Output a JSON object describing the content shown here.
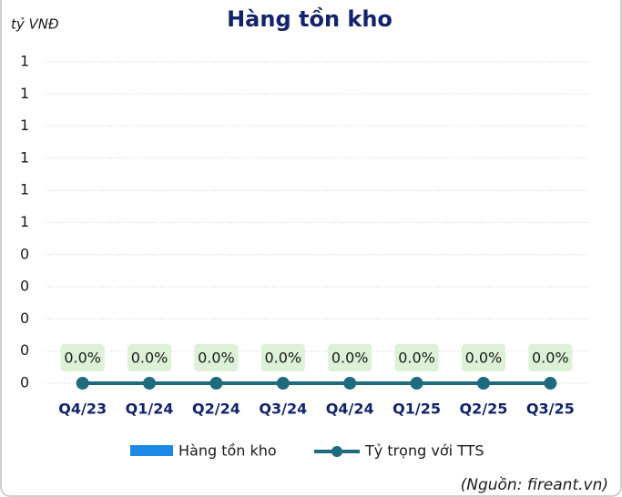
{
  "chart_data": {
    "type": "bar",
    "title": "Hàng tồn kho",
    "y_label": "tỷ VNĐ",
    "source": "(Nguồn: fireant.vn)",
    "categories": [
      "Q4/23",
      "Q1/24",
      "Q2/24",
      "Q3/24",
      "Q4/24",
      "Q1/25",
      "Q2/25",
      "Q3/25"
    ],
    "series": [
      {
        "name": "Hàng tồn kho",
        "type": "bar",
        "color": "#1e88e5",
        "values": [
          0,
          0,
          0,
          0,
          0,
          0,
          0,
          0
        ]
      },
      {
        "name": "Tỷ trọng với TTS",
        "type": "line",
        "color": "#1f6b7e",
        "values": [
          0,
          0,
          0,
          0,
          0,
          0,
          0,
          0
        ],
        "value_labels": [
          "0.0%",
          "0.0%",
          "0.0%",
          "0.0%",
          "0.0%",
          "0.0%",
          "0.0%",
          "0.0%"
        ]
      }
    ],
    "ylim": [
      0,
      1
    ],
    "yticks": [
      0,
      {
        "value": 0.1,
        "label": "0"
      },
      {
        "value": 0.2,
        "label": "0"
      },
      {
        "value": 0.3,
        "label": "0"
      },
      {
        "value": 0.4,
        "label": "0"
      },
      {
        "value": 0.5,
        "label": "1"
      },
      {
        "value": 0.6,
        "label": "1"
      },
      {
        "value": 0.7,
        "label": "1"
      },
      {
        "value": 0.8,
        "label": "1"
      },
      {
        "value": 0.9,
        "label": "1"
      },
      1
    ],
    "grid": true,
    "legend": "bottom"
  }
}
